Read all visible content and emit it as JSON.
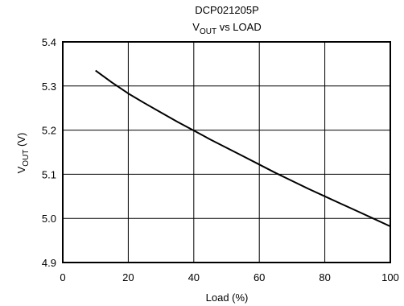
{
  "chart_data": {
    "type": "line",
    "title": "DCP021205P",
    "subtitle": {
      "prefix": "V",
      "subscript": "OUT",
      "suffix": " vs LOAD"
    },
    "xlabel": "Load (%)",
    "ylabel": {
      "prefix": "V",
      "subscript": "OUT",
      "suffix": " (V)"
    },
    "xlim": [
      0,
      100
    ],
    "ylim": [
      4.9,
      5.4
    ],
    "xticks": [
      "0",
      "20",
      "40",
      "60",
      "80",
      "100"
    ],
    "yticks": [
      "4.9",
      "5.0",
      "5.1",
      "5.2",
      "5.3",
      "5.4"
    ],
    "grid": true,
    "legend": "none",
    "series": [
      {
        "x": [
          10,
          15,
          20,
          25,
          30,
          35,
          40,
          45,
          50,
          55,
          60,
          65,
          70,
          75,
          80,
          85,
          90,
          95,
          100
        ],
        "y": [
          5.335,
          5.308,
          5.283,
          5.261,
          5.24,
          5.219,
          5.199,
          5.179,
          5.16,
          5.141,
          5.122,
          5.103,
          5.085,
          5.067,
          5.05,
          5.033,
          5.016,
          4.999,
          4.982
        ],
        "color": "#000000"
      }
    ]
  }
}
